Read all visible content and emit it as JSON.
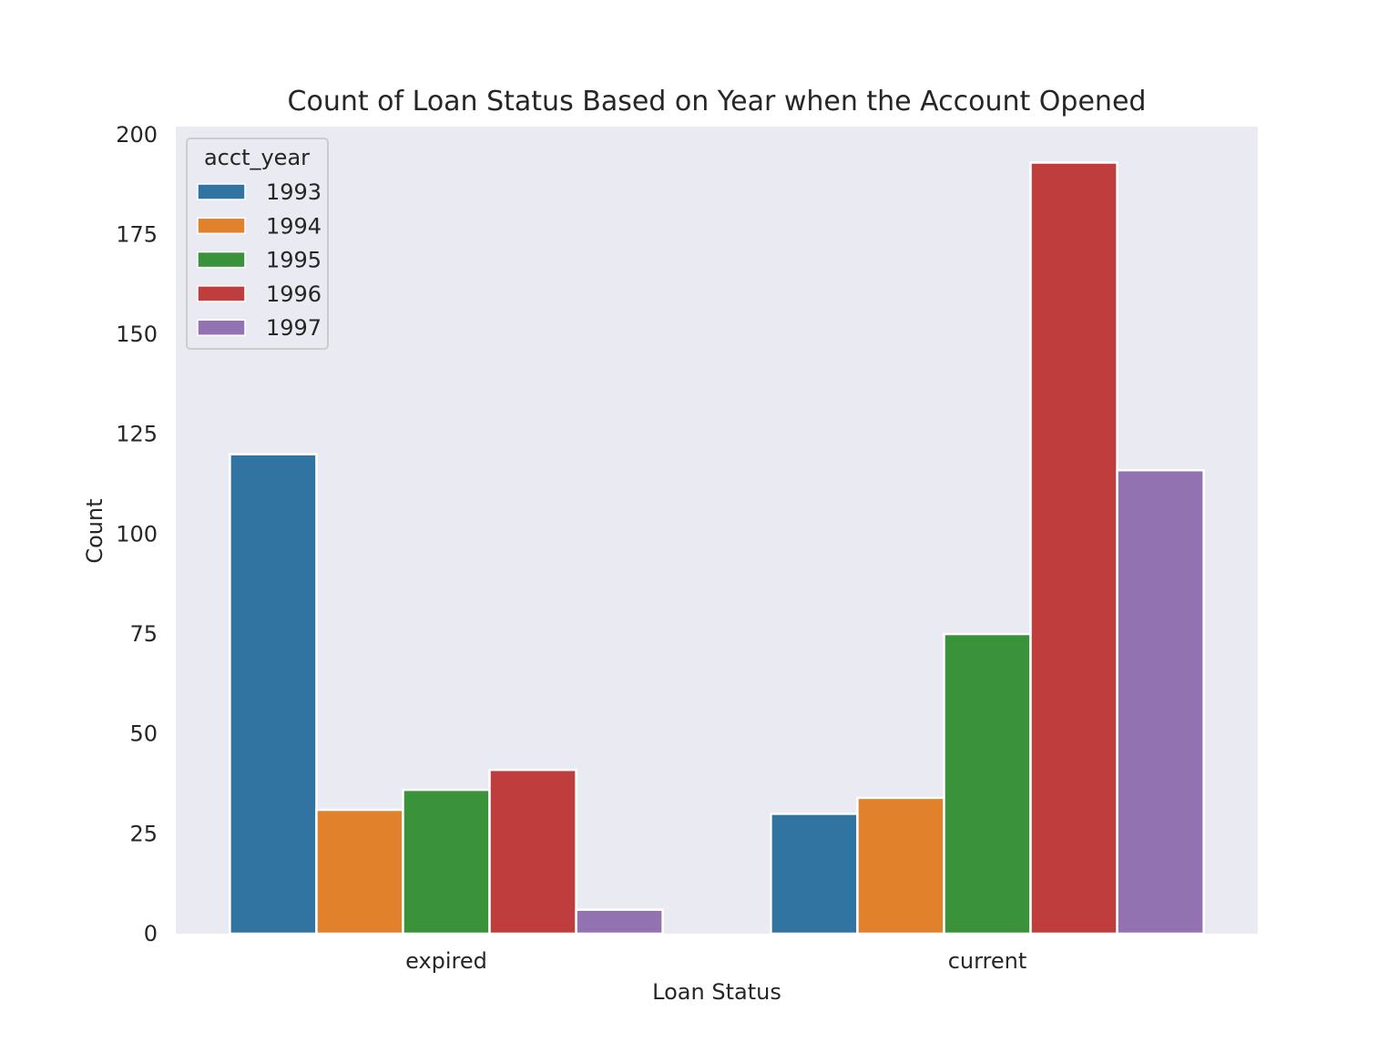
{
  "chart_data": {
    "type": "bar",
    "title": "Count of Loan Status Based on Year when the Account Opened",
    "xlabel": "Loan Status",
    "ylabel": "Count",
    "categories": [
      "expired",
      "current"
    ],
    "series": [
      {
        "name": "1993",
        "color": "#3274a1",
        "values": [
          120,
          30
        ]
      },
      {
        "name": "1994",
        "color": "#e1812c",
        "values": [
          31,
          34
        ]
      },
      {
        "name": "1995",
        "color": "#3a923a",
        "values": [
          36,
          75
        ]
      },
      {
        "name": "1996",
        "color": "#c03d3e",
        "values": [
          41,
          193
        ]
      },
      {
        "name": "1997",
        "color": "#9372b2",
        "values": [
          6,
          116
        ]
      }
    ],
    "ylim": [
      0,
      202
    ],
    "yticks": [
      0,
      25,
      50,
      75,
      100,
      125,
      150,
      175,
      200
    ],
    "legend": {
      "title": "acct_year",
      "position": "top-left"
    },
    "grid": false,
    "background": "#eaeaf2"
  }
}
